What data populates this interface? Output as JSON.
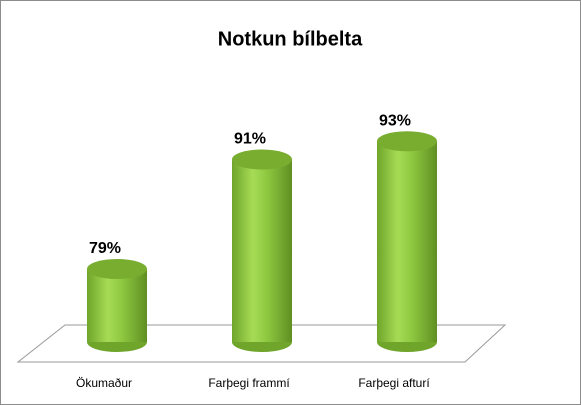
{
  "chart_data": {
    "type": "bar",
    "title": "Notkun bílbelta",
    "categories": [
      "Ökumaður",
      "Farþegi frammí",
      "Farþegi afturí"
    ],
    "values": [
      79,
      91,
      93
    ],
    "value_labels": [
      "79%",
      "91%",
      "93%"
    ],
    "color": "#8cc63f",
    "ylim": [
      71,
      95
    ]
  }
}
